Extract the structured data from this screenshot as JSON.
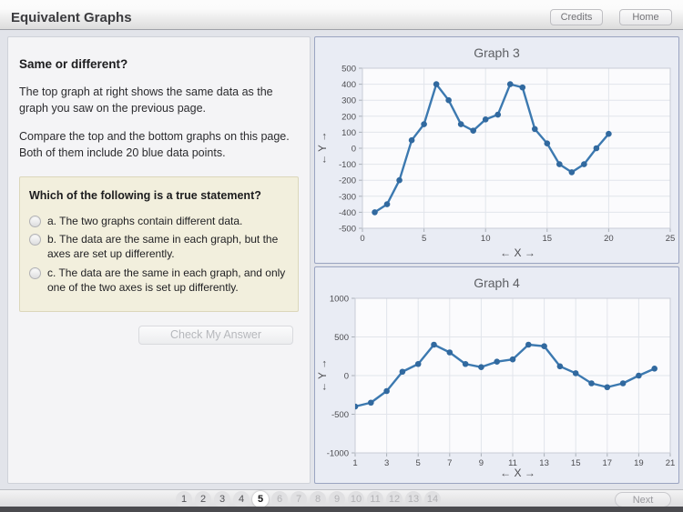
{
  "header": {
    "title": "Equivalent Graphs",
    "credits_label": "Credits",
    "home_label": "Home"
  },
  "sidebar": {
    "heading": "Same or different?",
    "para1": "The top graph at right shows the same data as the graph you saw on the previous page.",
    "para2": "Compare the top and the bottom graphs on this page. Both of them include 20 blue data points.",
    "question": {
      "prompt": "Which of the following is a true statement?",
      "options": [
        {
          "label": "a. The two graphs contain different data."
        },
        {
          "label": "b. The data are the same in each graph, but the axes are set up differently."
        },
        {
          "label": "c. The data are the same in each graph, and only one of the two axes is set up differently."
        }
      ]
    },
    "check_button_label": "Check My Answer"
  },
  "chart_data": [
    {
      "type": "line",
      "title": "Graph 3",
      "xlabel": "← X →",
      "ylabel": "← Y →",
      "xlim": [
        0,
        25
      ],
      "ylim": [
        -500,
        500
      ],
      "xticks": [
        0,
        5,
        10,
        15,
        20,
        25
      ],
      "yticks": [
        500,
        400,
        300,
        200,
        100,
        0,
        -100,
        -200,
        -300,
        -400,
        -500
      ],
      "grid": true,
      "x": [
        1,
        2,
        3,
        4,
        5,
        6,
        7,
        8,
        9,
        10,
        11,
        12,
        13,
        14,
        15,
        16,
        17,
        18,
        19,
        20
      ],
      "y": [
        -400,
        -350,
        -200,
        50,
        150,
        400,
        300,
        150,
        110,
        180,
        210,
        400,
        380,
        120,
        30,
        -100,
        -150,
        -100,
        0,
        90
      ]
    },
    {
      "type": "line",
      "title": "Graph 4",
      "xlabel": "← X →",
      "ylabel": "← Y →",
      "xlim": [
        1,
        21
      ],
      "ylim": [
        -1000,
        1000
      ],
      "xticks": [
        1,
        3,
        5,
        7,
        9,
        11,
        13,
        15,
        17,
        19,
        21
      ],
      "yticks": [
        1000,
        500,
        0,
        -500,
        -1000
      ],
      "grid": true,
      "x": [
        1,
        2,
        3,
        4,
        5,
        6,
        7,
        8,
        9,
        10,
        11,
        12,
        13,
        14,
        15,
        16,
        17,
        18,
        19,
        20
      ],
      "y": [
        -400,
        -350,
        -200,
        50,
        150,
        400,
        300,
        150,
        110,
        180,
        210,
        400,
        380,
        120,
        30,
        -100,
        -150,
        -100,
        0,
        90
      ]
    }
  ],
  "footer": {
    "pages": [
      "1",
      "2",
      "3",
      "4",
      "5",
      "6",
      "7",
      "8",
      "9",
      "10",
      "11",
      "12",
      "13",
      "14"
    ],
    "current": "5",
    "visited": [
      "1",
      "2",
      "3",
      "4"
    ],
    "next_label": "Next"
  },
  "colors": {
    "line": "#3c79b0",
    "marker": "#31699f",
    "plot_bg": "#fbfbfd",
    "grid_line": "#e2e5eb",
    "panel_border": "#9aa4c1"
  }
}
